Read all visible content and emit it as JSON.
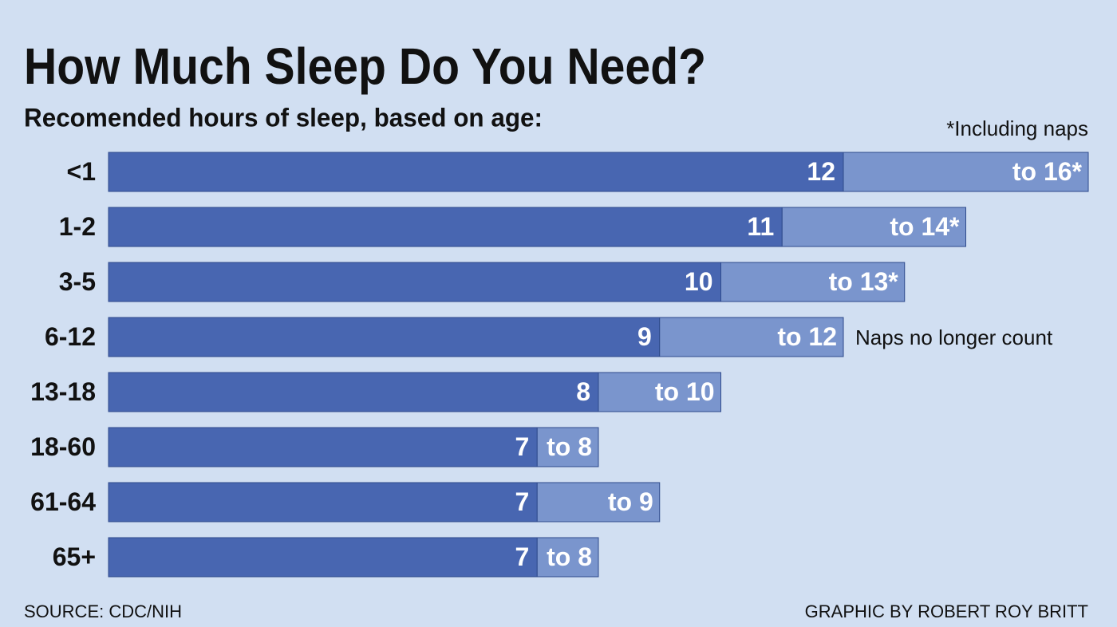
{
  "chart_data": {
    "type": "range-bar",
    "title": "How Much Sleep Do You Need?",
    "subtitle": "Recomended hours of sleep, based on age:",
    "categories": [
      "<1",
      "1-2",
      "3-5",
      "6-12",
      "13-18",
      "18-60",
      "61-64",
      "65+"
    ],
    "series": [
      {
        "name": "Minimum hours",
        "color": "#4866b1",
        "values": [
          12,
          11,
          10,
          9,
          8,
          7,
          7,
          7
        ]
      },
      {
        "name": "Maximum hours",
        "color": "#7a95cd",
        "values": [
          16,
          14,
          13,
          12,
          10,
          8,
          9,
          8
        ],
        "value_labels": [
          "to 16*",
          "to 14*",
          "to 13*",
          "to 12",
          "to 10",
          "to 8",
          "to 9",
          "to 8"
        ]
      }
    ],
    "annotations": [
      "*Including naps",
      "Naps no longer count"
    ],
    "source": "SOURCE: CDC/NIH",
    "credit": "GRAPHIC BY ROBERT ROY BRITT"
  }
}
